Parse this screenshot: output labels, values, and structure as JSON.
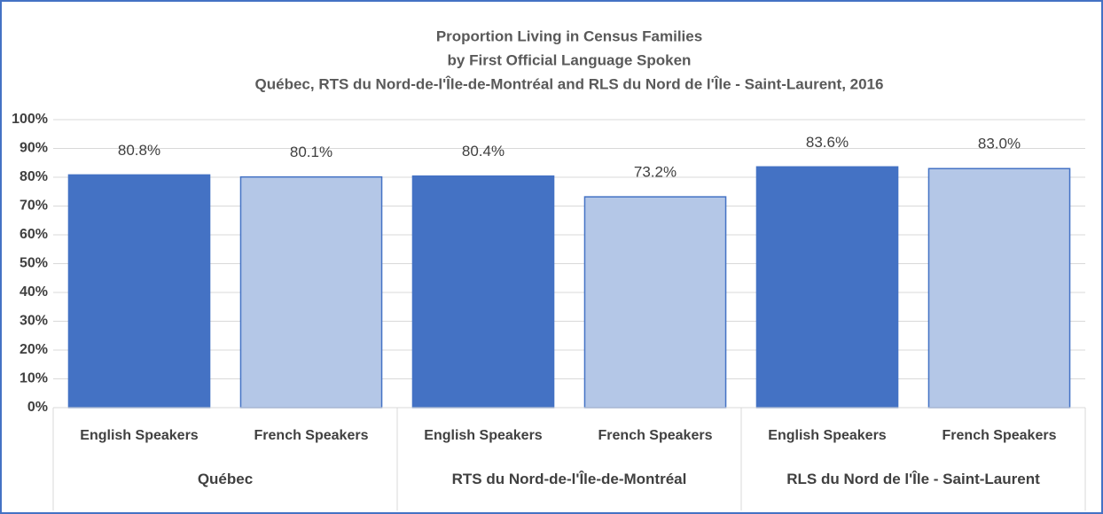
{
  "chart_data": {
    "type": "bar",
    "title": [
      "Proportion Living in Census Families",
      "by First Official Language Spoken",
      "Québec, RTS du Nord-de-l'Île-de-Montréal and RLS du Nord de l'Île - Saint-Laurent, 2016"
    ],
    "categories": [
      "English Speakers",
      "French Speakers",
      "English Speakers",
      "French Speakers",
      "English Speakers",
      "French Speakers"
    ],
    "groups": [
      "Québec",
      "RTS du Nord-de-l'Île-de-Montréal",
      "RLS du Nord de l'Île - Saint-Laurent"
    ],
    "values": [
      80.8,
      80.1,
      80.4,
      73.2,
      83.6,
      83.0
    ],
    "value_labels": [
      "80.8%",
      "80.1%",
      "80.4%",
      "73.2%",
      "83.6%",
      "83.0%"
    ],
    "colors": [
      "#4472c4",
      "#b4c7e7",
      "#4472c4",
      "#b4c7e7",
      "#4472c4",
      "#b4c7e7"
    ],
    "ylim": [
      0,
      100
    ],
    "yticks": [
      {
        "value": 0,
        "label": "0%"
      },
      {
        "value": 10,
        "label": "10%"
      },
      {
        "value": 20,
        "label": "20%"
      },
      {
        "value": 30,
        "label": "30%"
      },
      {
        "value": 40,
        "label": "40%"
      },
      {
        "value": 50,
        "label": "50%"
      },
      {
        "value": 60,
        "label": "60%"
      },
      {
        "value": 70,
        "label": "70%"
      },
      {
        "value": 80,
        "label": "80%"
      },
      {
        "value": 90,
        "label": "90%"
      },
      {
        "value": 100,
        "label": "100%"
      }
    ],
    "grid": true
  }
}
